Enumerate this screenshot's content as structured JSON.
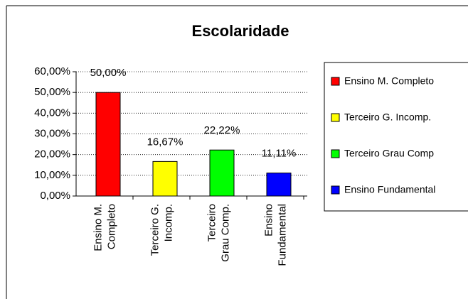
{
  "chart_data": {
    "type": "bar",
    "title": "Escolaridade",
    "categories": [
      [
        "Ensino M.",
        "Completo"
      ],
      [
        "Terceiro G.",
        "Incomp."
      ],
      [
        "Terceiro",
        "Grau Comp."
      ],
      [
        "Ensino",
        "Fundamental"
      ]
    ],
    "legend": [
      "Ensino M. Completo",
      "Terceiro G. Incomp.",
      "Terceiro Grau Comp",
      "Ensino Fundamental"
    ],
    "values": [
      50,
      16.67,
      22.22,
      11.11
    ],
    "value_labels": [
      "50,00%",
      "16,67%",
      "22,22%",
      "11,11%"
    ],
    "colors": [
      "#ff0000",
      "#ffff00",
      "#00ff00",
      "#0000ff"
    ],
    "ylim": [
      0,
      60
    ],
    "yticks": [
      {
        "value": 0,
        "label": "0,00%"
      },
      {
        "value": 10,
        "label": "10,00%"
      },
      {
        "value": 20,
        "label": "20,00%"
      },
      {
        "value": 30,
        "label": "30,00%"
      },
      {
        "value": 40,
        "label": "40,00%"
      },
      {
        "value": 50,
        "label": "50,00%"
      },
      {
        "value": 60,
        "label": "60,00%"
      }
    ],
    "grid": true
  }
}
